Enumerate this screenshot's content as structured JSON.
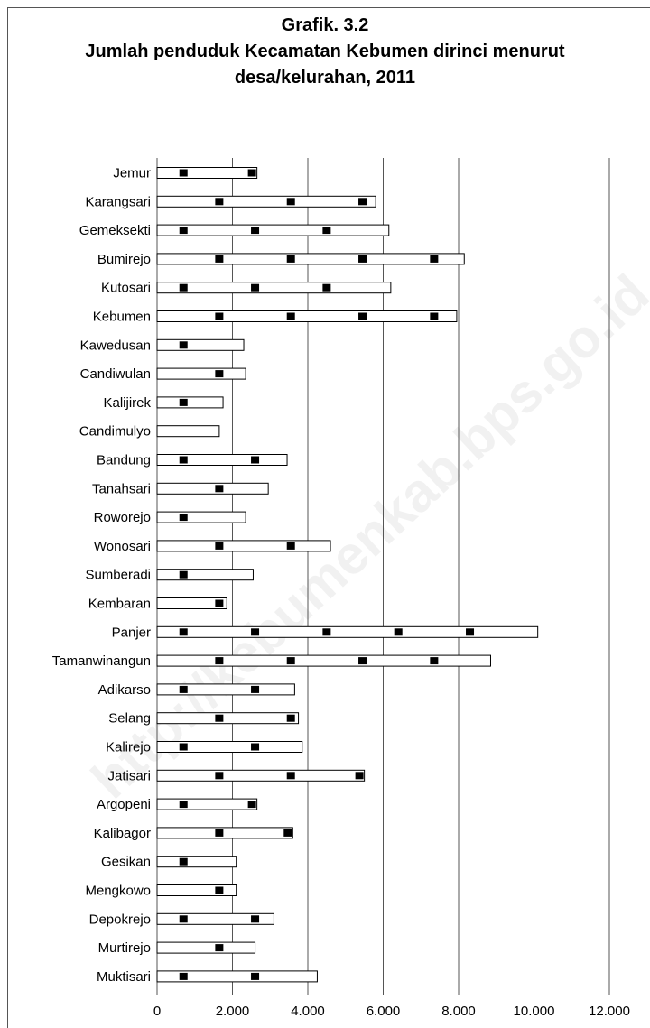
{
  "chart_data": {
    "type": "bar",
    "orientation": "horizontal",
    "title_lines": [
      "Grafik. 3.2",
      "Jumlah penduduk Kecamatan Kebumen dirinci menurut",
      "desa/kelurahan, 2011"
    ],
    "categories": [
      "Jemur",
      "Karangsari",
      "Gemeksekti",
      "Bumirejo",
      "Kutosari",
      "Kebumen",
      "Kawedusan",
      "Candiwulan",
      "Kalijirek",
      "Candimulyo",
      "Bandung",
      "Tanahsari",
      "Roworejo",
      "Wonosari",
      "Sumberadi",
      "Kembaran",
      "Panjer",
      "Tamanwinangun",
      "Adikarso",
      "Selang",
      "Kalirejo",
      "Jatisari",
      "Argopeni",
      "Kalibagor",
      "Gesikan",
      "Mengkowo",
      "Depokrejo",
      "Murtirejo",
      "Muktisari"
    ],
    "values": [
      2650,
      5800,
      6150,
      8150,
      6200,
      7950,
      2300,
      2350,
      1750,
      1650,
      3450,
      2950,
      2350,
      4600,
      2550,
      1850,
      10100,
      8850,
      3650,
      3750,
      3850,
      5500,
      2650,
      3600,
      2100,
      2100,
      3100,
      2600,
      4250
    ],
    "xlim": [
      0,
      12000
    ],
    "x_ticks": [
      "0",
      "2.000",
      "4.000",
      "6.000",
      "8.000",
      "10.000",
      "12.000"
    ],
    "grid": true,
    "legend": "none",
    "bar_style": "white-fill-black-outline-with-square-markers",
    "colors": {
      "bar_fill": "#ffffff",
      "bar_stroke": "#000000",
      "gridline": "#555555",
      "marker": "#000000"
    },
    "watermark": "http://kebumenkab.bps.go.id"
  }
}
